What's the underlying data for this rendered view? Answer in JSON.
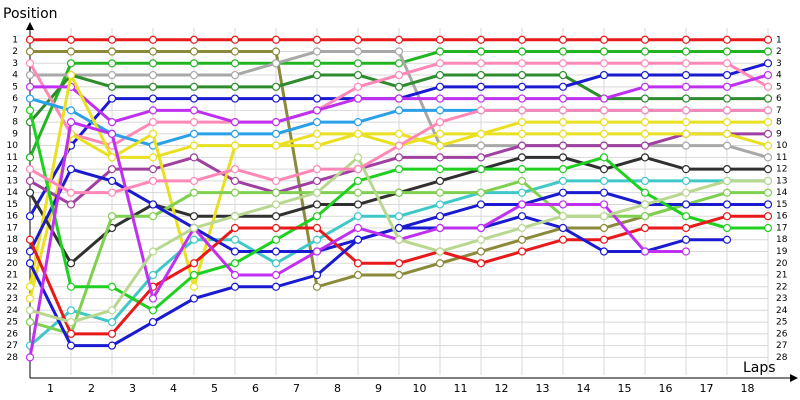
{
  "chart_data": {
    "type": "line",
    "title": "Position",
    "x_label": "Laps",
    "x": [
      0,
      1,
      2,
      3,
      4,
      5,
      6,
      7,
      8,
      9,
      10,
      11,
      12,
      13,
      14,
      15,
      16,
      17,
      18
    ],
    "xlim": [
      0,
      18.5
    ],
    "xticks": [
      {
        "value": 0.5,
        "label": "1"
      },
      {
        "value": 1.5,
        "label": "2"
      },
      {
        "value": 2.5,
        "label": "3"
      },
      {
        "value": 3.5,
        "label": "4"
      },
      {
        "value": 4.5,
        "label": "5"
      },
      {
        "value": 5.5,
        "label": "6"
      },
      {
        "value": 6.5,
        "label": "7"
      },
      {
        "value": 7.5,
        "label": "8"
      },
      {
        "value": 8.5,
        "label": "9"
      },
      {
        "value": 9.5,
        "label": "10"
      },
      {
        "value": 10.5,
        "label": "11"
      },
      {
        "value": 11.5,
        "label": "12"
      },
      {
        "value": 12.5,
        "label": "13"
      },
      {
        "value": 13.5,
        "label": "14"
      },
      {
        "value": 14.5,
        "label": "15"
      },
      {
        "value": 15.5,
        "label": "16"
      },
      {
        "value": 16.5,
        "label": "17"
      },
      {
        "value": 17.5,
        "label": "18"
      }
    ],
    "ylim": [
      0,
      29.5
    ],
    "y_inverted": true,
    "yticks": [
      1,
      2,
      3,
      4,
      5,
      6,
      7,
      8,
      9,
      10,
      11,
      12,
      13,
      14,
      15,
      16,
      17,
      18,
      19,
      20,
      21,
      22,
      23,
      24,
      25,
      26,
      27,
      28
    ],
    "grid": true,
    "series": [
      {
        "color": "#e8191a",
        "values": [
          1,
          1,
          1,
          1,
          1,
          1,
          1,
          1,
          1,
          1,
          1,
          1,
          1,
          1,
          1,
          1,
          1,
          1,
          1
        ]
      },
      {
        "color": "#8a8a3a",
        "values": [
          2,
          2,
          2,
          2,
          2,
          2,
          2,
          22,
          21,
          21,
          20,
          19,
          18,
          17,
          17,
          16,
          15,
          15,
          15
        ]
      },
      {
        "color": "#22b522",
        "values": [
          11,
          3,
          3,
          3,
          3,
          3,
          3,
          3,
          3,
          3,
          2,
          2,
          2,
          2,
          2,
          2,
          2,
          2,
          2
        ]
      },
      {
        "color": "#a8a8a8",
        "values": [
          4,
          4,
          4,
          4,
          4,
          4,
          3,
          2,
          2,
          2,
          10,
          10,
          10,
          10,
          10,
          10,
          10,
          10,
          11
        ]
      },
      {
        "color": "#2e8b2e",
        "values": [
          8,
          4,
          5,
          5,
          5,
          5,
          5,
          4,
          4,
          5,
          4,
          4,
          4,
          4,
          6,
          6,
          6,
          6,
          6
        ]
      },
      {
        "color": "#1a1ad0",
        "values": [
          16,
          10,
          6,
          6,
          6,
          6,
          6,
          6,
          6,
          6,
          5,
          5,
          5,
          5,
          4,
          4,
          4,
          4,
          3
        ]
      },
      {
        "color": "#ff88b8",
        "values": [
          3,
          9,
          10,
          8,
          8,
          8,
          8,
          7,
          5,
          4,
          3,
          3,
          3,
          3,
          3,
          3,
          3,
          3,
          5
        ]
      },
      {
        "color": "#c030f0",
        "values": [
          5,
          5,
          8,
          7,
          7,
          8,
          8,
          7,
          6,
          6,
          6,
          6,
          6,
          6,
          6,
          5,
          5,
          5,
          4
        ]
      },
      {
        "color": "#2aa0e8",
        "values": [
          6,
          7,
          9,
          10,
          9,
          9,
          9,
          8,
          8,
          7,
          7,
          7,
          7,
          7,
          7,
          7,
          7,
          7,
          7
        ]
      },
      {
        "color": "#e8e020",
        "values": [
          23,
          9,
          11,
          11,
          10,
          10,
          10,
          9,
          9,
          10,
          9,
          9,
          8,
          8,
          8,
          8,
          8,
          8,
          8
        ]
      },
      {
        "color": "#a040a0",
        "values": [
          13,
          15,
          12,
          12,
          11,
          13,
          14,
          13,
          12,
          11,
          11,
          11,
          10,
          10,
          10,
          10,
          9,
          9,
          9
        ]
      },
      {
        "color": "#303030",
        "values": [
          14,
          20,
          17,
          15,
          16,
          16,
          16,
          15,
          15,
          14,
          13,
          12,
          11,
          11,
          12,
          11,
          12,
          12,
          12
        ]
      },
      {
        "color": "#40c8c8",
        "values": [
          27,
          24,
          25,
          21,
          18,
          18,
          20,
          18,
          16,
          16,
          15,
          14,
          14,
          13,
          13,
          13,
          13,
          13,
          13
        ]
      },
      {
        "color": "#e8e020",
        "values": [
          22,
          4,
          11,
          9,
          22,
          10,
          10,
          10,
          9,
          9,
          10,
          9,
          9,
          9,
          9,
          9,
          9,
          9,
          10
        ]
      },
      {
        "color": "#7fd050",
        "values": [
          25,
          26,
          16,
          16,
          14,
          14,
          14,
          14,
          14,
          14,
          14,
          14,
          13,
          16,
          16,
          16,
          15,
          14,
          14
        ]
      },
      {
        "color": "#1a1ad0",
        "values": [
          19,
          12,
          13,
          15,
          17,
          19,
          19,
          19,
          18,
          17,
          16,
          15,
          15,
          14,
          14,
          15,
          15,
          15,
          15
        ]
      },
      {
        "color": "#20d020",
        "values": [
          7,
          22,
          22,
          24,
          21,
          20,
          18,
          16,
          13,
          12,
          12,
          12,
          12,
          12,
          11,
          14,
          16,
          17,
          17
        ]
      },
      {
        "color": "#e8191a",
        "values": [
          18,
          26,
          26,
          22,
          20,
          17,
          17,
          17,
          20,
          20,
          19,
          20,
          19,
          18,
          18,
          17,
          17,
          16,
          16
        ]
      },
      {
        "color": "#1a1ad0",
        "values": [
          20,
          27,
          27,
          25,
          23,
          22,
          22,
          21,
          18,
          17,
          17,
          17,
          16,
          17,
          19,
          19,
          18,
          18,
          null
        ]
      },
      {
        "color": "#c030f0",
        "values": [
          28,
          8,
          9,
          23,
          17,
          21,
          21,
          19,
          17,
          18,
          17,
          17,
          15,
          15,
          15,
          19,
          19,
          null,
          null
        ]
      },
      {
        "color": "#b8d890",
        "values": [
          24,
          25,
          24,
          19,
          17,
          16,
          15,
          14,
          11,
          18,
          19,
          18,
          17,
          16,
          16,
          15,
          14,
          13,
          13
        ]
      },
      {
        "color": "#ff88b8",
        "values": [
          12,
          14,
          14,
          13,
          13,
          12,
          13,
          12,
          12,
          10,
          8,
          7,
          7,
          7,
          7,
          7,
          7,
          7,
          7
        ]
      }
    ]
  }
}
